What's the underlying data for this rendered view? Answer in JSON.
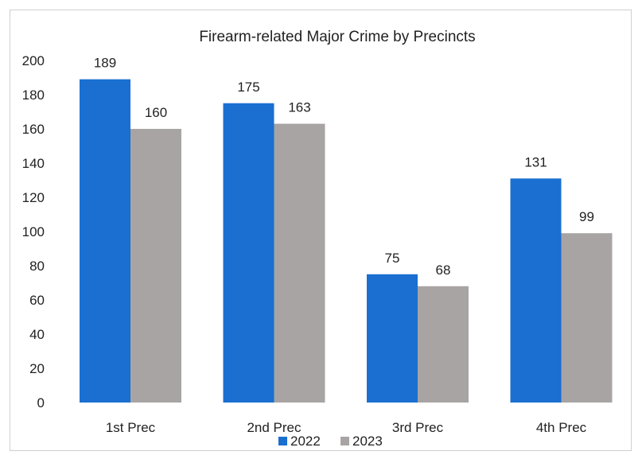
{
  "chart_data": {
    "type": "bar",
    "title": "Firearm-related Major Crime by Precincts",
    "xlabel": "",
    "ylabel": "",
    "categories": [
      "1st Prec",
      "2nd Prec",
      "3rd Prec",
      "4th Prec"
    ],
    "series": [
      {
        "name": "2022",
        "values": [
          189,
          175,
          75,
          131
        ],
        "color": "#1a6fd1"
      },
      {
        "name": "2023",
        "values": [
          160,
          163,
          68,
          99
        ],
        "color": "#a8a4a4"
      }
    ],
    "ylim": [
      0,
      200
    ],
    "yticks": [
      0,
      20,
      40,
      60,
      80,
      100,
      120,
      140,
      160,
      180,
      200
    ],
    "grid": false,
    "legend": "bottom",
    "data_labels": true
  }
}
